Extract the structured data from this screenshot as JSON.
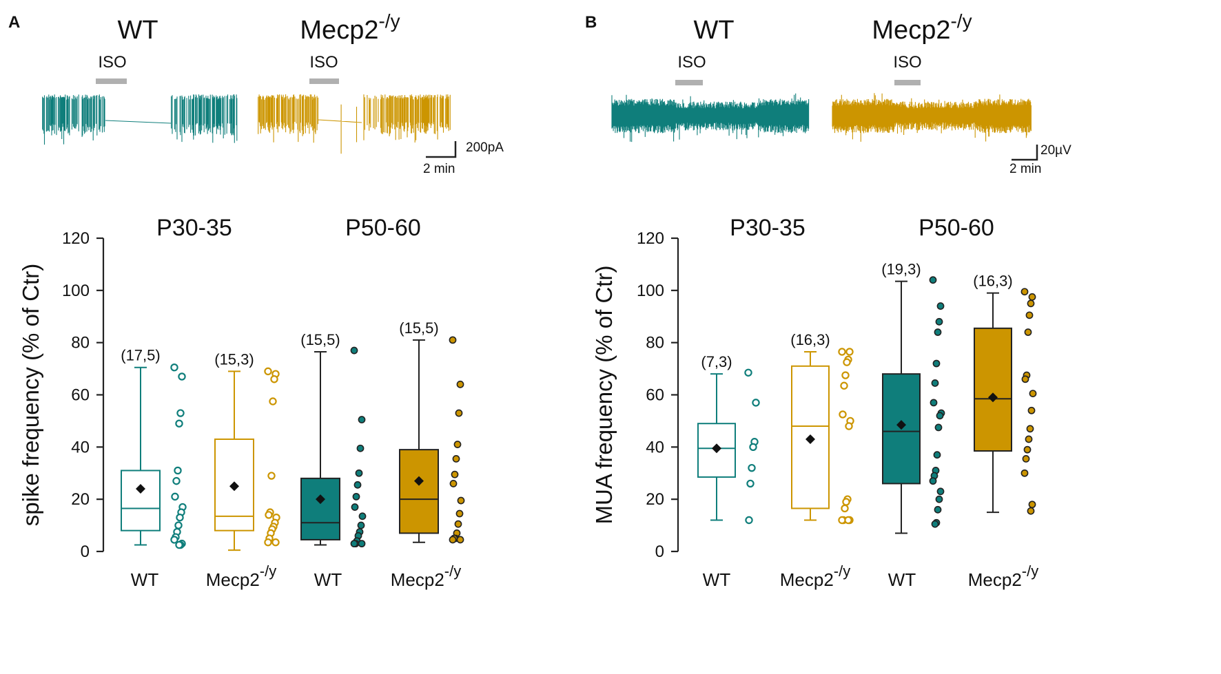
{
  "colors": {
    "wt": "#0f7e7b",
    "mecp2": "#cc9500",
    "iso_bar": "#b0b0b0",
    "axis": "#222222",
    "mean_marker": "#111111"
  },
  "panels": [
    {
      "letter": "A",
      "traces": {
        "wt_title": "WT",
        "mecp2_title": "Mecp2",
        "mecp2_sup": "-/y",
        "iso_label": "ISO",
        "scale_amplitude": "200pA",
        "scale_time": "2 min"
      },
      "periods": [
        "P30-35",
        "P50-60"
      ],
      "categories": [
        {
          "main": "WT",
          "sup": ""
        },
        {
          "main": "Mecp2",
          "sup": "-/y"
        },
        {
          "main": "WT",
          "sup": ""
        },
        {
          "main": "Mecp2",
          "sup": "-/y"
        }
      ]
    },
    {
      "letter": "B",
      "traces": {
        "wt_title": "WT",
        "mecp2_title": "Mecp2",
        "mecp2_sup": "-/y",
        "iso_label": "ISO",
        "scale_amplitude": "20µV",
        "scale_time": "2 min"
      },
      "periods": [
        "P30-35",
        "P50-60"
      ],
      "categories": [
        {
          "main": "WT",
          "sup": ""
        },
        {
          "main": "Mecp2",
          "sup": "-/y"
        },
        {
          "main": "WT",
          "sup": ""
        },
        {
          "main": "Mecp2",
          "sup": "-/y"
        }
      ]
    }
  ],
  "chart_data": [
    {
      "type": "box",
      "panel": "A",
      "ylabel": "spike frequency (% of Ctr)",
      "ylim": [
        0,
        120
      ],
      "yticks": [
        0,
        20,
        40,
        60,
        80,
        100,
        120
      ],
      "series": [
        {
          "name": "WT",
          "period": "P30-35",
          "filled": false,
          "color_key": "wt",
          "n_label": "(17,5)",
          "whisker_low": 2.5,
          "q1": 8,
          "median": 16.5,
          "q3": 31,
          "whisker_high": 70.5,
          "mean": 24,
          "points": [
            70.5,
            67,
            53,
            49,
            31,
            27,
            21,
            17,
            15,
            13,
            10,
            7.5,
            5.5,
            4.5,
            3,
            2.5,
            2.5
          ]
        },
        {
          "name": "Mecp2-/y",
          "period": "P30-35",
          "filled": false,
          "color_key": "mecp2",
          "n_label": "(15,3)",
          "whisker_low": 0.5,
          "q1": 8,
          "median": 13.5,
          "q3": 43,
          "whisker_high": 69,
          "mean": 25,
          "points": [
            69,
            68,
            66,
            57.5,
            29,
            15,
            14,
            13,
            11,
            9.5,
            8.5,
            7,
            5,
            3.5,
            3.5
          ]
        },
        {
          "name": "WT",
          "period": "P50-60",
          "filled": true,
          "color_key": "wt",
          "n_label": "(15,5)",
          "whisker_low": 2.5,
          "q1": 4.5,
          "median": 11,
          "q3": 28,
          "whisker_high": 76.5,
          "mean": 20,
          "points": [
            77,
            50.5,
            39.5,
            30,
            25.5,
            21,
            17,
            13.5,
            10,
            7.5,
            6,
            4,
            3,
            3,
            3
          ]
        },
        {
          "name": "Mecp2-/y",
          "period": "P50-60",
          "filled": true,
          "color_key": "mecp2",
          "n_label": "(15,5)",
          "whisker_low": 3.5,
          "q1": 7,
          "median": 20,
          "q3": 39,
          "whisker_high": 81,
          "mean": 27,
          "points": [
            81,
            64,
            53,
            41,
            35.5,
            29.5,
            26,
            19.5,
            14.5,
            10.5,
            7,
            5,
            5,
            4.5,
            4.5
          ]
        }
      ]
    },
    {
      "type": "box",
      "panel": "B",
      "ylabel": "MUA frequency (% of Ctr)",
      "ylim": [
        0,
        120
      ],
      "yticks": [
        0,
        20,
        40,
        60,
        80,
        100,
        120
      ],
      "series": [
        {
          "name": "WT",
          "period": "P30-35",
          "filled": false,
          "color_key": "wt",
          "n_label": "(7,3)",
          "whisker_low": 12,
          "q1": 28.5,
          "median": 39.5,
          "q3": 49,
          "whisker_high": 68,
          "mean": 39.5,
          "points": [
            68.5,
            57,
            42,
            40,
            32,
            26,
            12
          ]
        },
        {
          "name": "Mecp2-/y",
          "period": "P30-35",
          "filled": false,
          "color_key": "mecp2",
          "n_label": "(16,3)",
          "whisker_low": 12,
          "q1": 16.5,
          "median": 48,
          "q3": 71,
          "whisker_high": 76.5,
          "mean": 43,
          "points": [
            76.5,
            76.5,
            73.5,
            72.5,
            67.5,
            63.5,
            52.5,
            50,
            48,
            20,
            19,
            16.5,
            12,
            12,
            12,
            12
          ]
        },
        {
          "name": "WT",
          "period": "P50-60",
          "filled": true,
          "color_key": "wt",
          "n_label": "(19,3)",
          "whisker_low": 7,
          "q1": 26,
          "median": 46,
          "q3": 68,
          "whisker_high": 103.5,
          "mean": 48.5,
          "points": [
            104,
            94,
            88,
            84,
            72,
            64.5,
            57,
            53,
            52,
            47.5,
            37,
            31,
            29,
            27,
            23,
            20,
            16,
            11,
            10.5
          ]
        },
        {
          "name": "Mecp2-/y",
          "period": "P50-60",
          "filled": true,
          "color_key": "mecp2",
          "n_label": "(16,3)",
          "whisker_low": 15,
          "q1": 38.5,
          "median": 58.5,
          "q3": 85.5,
          "whisker_high": 99,
          "mean": 59,
          "points": [
            99.5,
            97.5,
            95,
            90.5,
            84,
            67.5,
            66,
            60.5,
            54,
            47,
            43,
            39,
            35.5,
            30,
            18,
            15.5
          ]
        }
      ]
    }
  ]
}
